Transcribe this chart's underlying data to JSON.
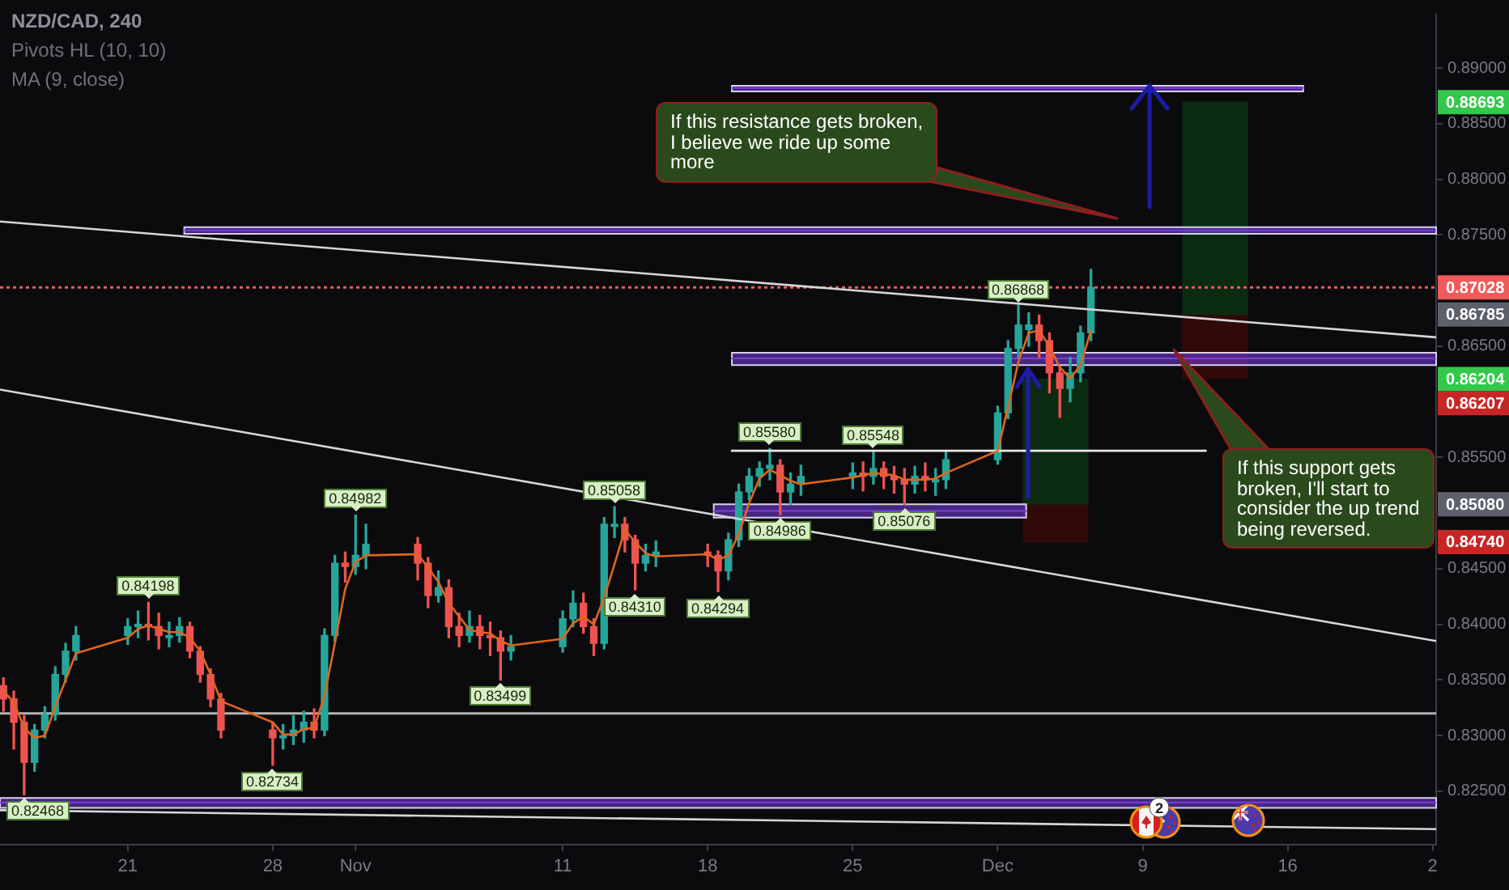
{
  "chart_data": {
    "type": "candlestick",
    "title": "NZD/CAD, 240",
    "subtitle": "Pivots HL (10, 10)",
    "x": [
      "--10-15T00:00",
      "--10-15T12:00",
      "--10-16T00:00",
      "--10-16T12:00",
      "--10-17T00:00",
      "--10-17T12:00",
      "--10-18T00:00",
      "--10-18T12:00",
      "--10-21T00:00",
      "--10-21T12:00",
      "--10-22T00:00",
      "--10-22T12:00",
      "--10-23T00:00",
      "--10-23T12:00",
      "--10-24T00:00",
      "--10-24T12:00",
      "--10-25T00:00",
      "--10-25T12:00",
      "--10-28T00:00",
      "--10-28T12:00",
      "--10-29T00:00",
      "--10-29T12:00",
      "--10-30T00:00",
      "--10-30T12:00",
      "--10-31T00:00",
      "--10-31T12:00",
      "--11-01T00:00",
      "--11-01T12:00",
      "--11-04T00:00",
      "--11-04T12:00",
      "--11-05T00:00",
      "--11-05T12:00",
      "--11-06T00:00",
      "--11-06T12:00",
      "--11-07T00:00",
      "--11-07T12:00",
      "--11-08T00:00",
      "--11-08T12:00",
      "--11-11T00:00",
      "--11-11T12:00",
      "--11-12T00:00",
      "--11-12T12:00",
      "--11-13T00:00",
      "--11-13T12:00",
      "--11-14T00:00",
      "--11-14T12:00",
      "--11-15T00:00",
      "--11-15T12:00",
      "--11-18T00:00",
      "--11-18T12:00",
      "--11-19T00:00",
      "--11-19T12:00",
      "--11-20T00:00",
      "--11-20T12:00",
      "--11-21T00:00",
      "--11-21T12:00",
      "--11-22T00:00",
      "--11-22T12:00",
      "--11-25T00:00",
      "--11-25T12:00",
      "--11-26T00:00",
      "--11-26T12:00",
      "--11-27T00:00",
      "--11-27T12:00",
      "--11-28T00:00",
      "--11-28T12:00",
      "--11-29T00:00",
      "--11-29T12:00",
      "--12-02T00:00",
      "--12-02T12:00",
      "--12-03T00:00",
      "--12-03T12:00",
      "--12-04T00:00",
      "--12-04T12:00",
      "--12-05T00:00",
      "--12-05T12:00",
      "--12-06T00:00",
      "--12-06T12:00"
    ],
    "ohlc": [
      [
        0.8345,
        0.8352,
        0.8322,
        0.8333
      ],
      [
        0.8333,
        0.834,
        0.8288,
        0.8312
      ],
      [
        0.8312,
        0.8318,
        0.82468,
        0.8276
      ],
      [
        0.8276,
        0.831,
        0.8268,
        0.8305
      ],
      [
        0.8305,
        0.8326,
        0.8298,
        0.8319
      ],
      [
        0.8319,
        0.8362,
        0.8314,
        0.8355
      ],
      [
        0.8355,
        0.8383,
        0.8348,
        0.8376
      ],
      [
        0.8376,
        0.8398,
        0.8368,
        0.839
      ],
      [
        0.839,
        0.8405,
        0.8382,
        0.8398
      ],
      [
        0.8398,
        0.8412,
        0.8388,
        0.84
      ],
      [
        0.84,
        0.84198,
        0.8386,
        0.8398
      ],
      [
        0.8398,
        0.841,
        0.8378,
        0.839
      ],
      [
        0.8388,
        0.8402,
        0.838,
        0.839
      ],
      [
        0.839,
        0.8406,
        0.8384,
        0.8398
      ],
      [
        0.8398,
        0.8402,
        0.837,
        0.8376
      ],
      [
        0.8376,
        0.838,
        0.8348,
        0.8355
      ],
      [
        0.8355,
        0.836,
        0.8326,
        0.8333
      ],
      [
        0.8333,
        0.8338,
        0.8298,
        0.8305
      ],
      [
        0.8305,
        0.8312,
        0.82734,
        0.8298
      ],
      [
        0.8298,
        0.831,
        0.8288,
        0.83
      ],
      [
        0.83,
        0.8318,
        0.8292,
        0.8305
      ],
      [
        0.8305,
        0.8322,
        0.8294,
        0.8312
      ],
      [
        0.8312,
        0.8324,
        0.8298,
        0.8305
      ],
      [
        0.8305,
        0.8396,
        0.83,
        0.839
      ],
      [
        0.839,
        0.8462,
        0.8385,
        0.8455
      ],
      [
        0.8455,
        0.8465,
        0.8438,
        0.8452
      ],
      [
        0.8452,
        0.84982,
        0.8445,
        0.8462
      ],
      [
        0.8462,
        0.849,
        0.845,
        0.8472
      ],
      [
        0.8472,
        0.8478,
        0.844,
        0.8455
      ],
      [
        0.8455,
        0.846,
        0.8415,
        0.8426
      ],
      [
        0.8426,
        0.8448,
        0.842,
        0.8433
      ],
      [
        0.8433,
        0.844,
        0.8388,
        0.8398
      ],
      [
        0.8398,
        0.841,
        0.838,
        0.839
      ],
      [
        0.839,
        0.8412,
        0.8384,
        0.8398
      ],
      [
        0.8398,
        0.8408,
        0.8378,
        0.839
      ],
      [
        0.839,
        0.8402,
        0.8372,
        0.8388
      ],
      [
        0.8388,
        0.8394,
        0.83499,
        0.8376
      ],
      [
        0.8376,
        0.839,
        0.8368,
        0.838
      ],
      [
        0.838,
        0.8412,
        0.8375,
        0.8405
      ],
      [
        0.8405,
        0.843,
        0.8398,
        0.8419
      ],
      [
        0.8419,
        0.8428,
        0.8392,
        0.8398
      ],
      [
        0.8398,
        0.8405,
        0.8372,
        0.8383
      ],
      [
        0.8383,
        0.8496,
        0.8378,
        0.849
      ],
      [
        0.8488,
        0.85058,
        0.8478,
        0.849
      ],
      [
        0.849,
        0.8496,
        0.8465,
        0.8476
      ],
      [
        0.8476,
        0.848,
        0.8431,
        0.8455
      ],
      [
        0.8455,
        0.8472,
        0.8448,
        0.8462
      ],
      [
        0.8462,
        0.8475,
        0.8452,
        0.8465
      ],
      [
        0.8465,
        0.8472,
        0.8452,
        0.8462
      ],
      [
        0.8462,
        0.8466,
        0.84294,
        0.8448
      ],
      [
        0.8448,
        0.8482,
        0.844,
        0.8476
      ],
      [
        0.8476,
        0.8526,
        0.847,
        0.8519
      ],
      [
        0.8519,
        0.854,
        0.8512,
        0.8533
      ],
      [
        0.8533,
        0.8546,
        0.8524,
        0.854
      ],
      [
        0.854,
        0.8558,
        0.853,
        0.8543
      ],
      [
        0.8543,
        0.8548,
        0.84986,
        0.8519
      ],
      [
        0.8519,
        0.8536,
        0.8508,
        0.8526
      ],
      [
        0.8526,
        0.8543,
        0.8516,
        0.8533
      ],
      [
        0.8533,
        0.8545,
        0.8522,
        0.8536
      ],
      [
        0.8536,
        0.8546,
        0.852,
        0.8533
      ],
      [
        0.8533,
        0.85548,
        0.8526,
        0.854
      ],
      [
        0.854,
        0.8546,
        0.8522,
        0.8533
      ],
      [
        0.8533,
        0.8542,
        0.8518,
        0.853
      ],
      [
        0.853,
        0.854,
        0.85076,
        0.8526
      ],
      [
        0.8526,
        0.8542,
        0.8518,
        0.8533
      ],
      [
        0.8533,
        0.8545,
        0.852,
        0.853
      ],
      [
        0.8528,
        0.854,
        0.8516,
        0.853
      ],
      [
        0.853,
        0.8556,
        0.8522,
        0.8548
      ],
      [
        0.8548,
        0.8596,
        0.8544,
        0.859
      ],
      [
        0.859,
        0.8655,
        0.8585,
        0.8648
      ],
      [
        0.8648,
        0.86868,
        0.864,
        0.8669
      ],
      [
        0.8665,
        0.868,
        0.865,
        0.8669
      ],
      [
        0.8669,
        0.8678,
        0.864,
        0.8655
      ],
      [
        0.8655,
        0.8662,
        0.8608,
        0.8626
      ],
      [
        0.8626,
        0.8632,
        0.8586,
        0.8612
      ],
      [
        0.8612,
        0.864,
        0.86,
        0.8626
      ],
      [
        0.8626,
        0.8668,
        0.8618,
        0.8662
      ],
      [
        0.8662,
        0.8719,
        0.8655,
        0.87028
      ]
    ],
    "colors": [
      "#ef5350",
      "#ef5350",
      "#ef5350",
      "#26a69a",
      "#26a69a",
      "#26a69a",
      "#26a69a",
      "#26a69a",
      "#26a69a",
      "#26a69a",
      "#ef5350",
      "#ef5350",
      "#26a69a",
      "#26a69a",
      "#ef5350",
      "#ef5350",
      "#ef5350",
      "#ef5350",
      "#ef5350",
      "#26a69a",
      "#26a69a",
      "#26a69a",
      "#ef5350",
      "#26a69a",
      "#26a69a",
      "#ef5350",
      "#26a69a",
      "#26a69a",
      "#ef5350",
      "#ef5350",
      "#26a69a",
      "#ef5350",
      "#ef5350",
      "#26a69a",
      "#ef5350",
      "#ef5350",
      "#ef5350",
      "#26a69a",
      "#26a69a",
      "#26a69a",
      "#ef5350",
      "#ef5350",
      "#26a69a",
      "#26a69a",
      "#ef5350",
      "#ef5350",
      "#26a69a",
      "#26a69a",
      "#ef5350",
      "#ef5350",
      "#26a69a",
      "#26a69a",
      "#26a69a",
      "#26a69a",
      "#26a69a",
      "#ef5350",
      "#26a69a",
      "#26a69a",
      "#26a69a",
      "#ef5350",
      "#26a69a",
      "#ef5350",
      "#ef5350",
      "#ef5350",
      "#26a69a",
      "#ef5350",
      "#26a69a",
      "#26a69a",
      "#26a69a",
      "#26a69a",
      "#26a69a",
      "#26a69a",
      "#ef5350",
      "#ef5350",
      "#ef5350",
      "#26a69a",
      "#26a69a",
      "#26a69a"
    ],
    "xlim": [
      "--10-14T20:00",
      "--12-23T04:00"
    ],
    "xticks": [
      {
        "value": "--10-21",
        "label": "21"
      },
      {
        "value": "--10-28",
        "label": "28"
      },
      {
        "value": "--11-01",
        "label": "Nov"
      },
      {
        "value": "--11-11",
        "label": "11"
      },
      {
        "value": "--11-18",
        "label": "18"
      },
      {
        "value": "--11-25",
        "label": "25"
      },
      {
        "value": "--12-02",
        "label": "Dec"
      },
      {
        "value": "--12-09",
        "label": "9"
      },
      {
        "value": "--12-16",
        "label": "16"
      },
      {
        "value": "--12-23",
        "label": "2"
      }
    ],
    "ylim": [
      0.8202,
      0.8948
    ],
    "yticks": [
      {
        "value": 0.825,
        "label": "0.82500"
      },
      {
        "value": 0.83,
        "label": "0.83000"
      },
      {
        "value": 0.835,
        "label": "0.83500"
      },
      {
        "value": 0.84,
        "label": "0.84000"
      },
      {
        "value": 0.845,
        "label": "0.84500"
      },
      {
        "value": 0.855,
        "label": "0.85500"
      },
      {
        "value": 0.865,
        "label": "0.86500"
      },
      {
        "value": 0.875,
        "label": "0.87500"
      },
      {
        "value": 0.88,
        "label": "0.88000"
      },
      {
        "value": 0.885,
        "label": "0.88500"
      },
      {
        "value": 0.89,
        "label": "0.89000"
      }
    ],
    "marker": "none",
    "series": [
      {
        "type": "line",
        "color": "#e0651c",
        "values": [
          0.834,
          0.833,
          0.8307,
          0.8298,
          0.83,
          0.8326,
          0.835,
          0.8374,
          0.8388,
          0.8396,
          0.8399,
          0.8396,
          0.8393,
          0.8393,
          0.8388,
          0.8376,
          0.8355,
          0.8331,
          0.8312,
          0.8301,
          0.8301,
          0.8306,
          0.8307,
          0.8336,
          0.8383,
          0.8432,
          0.8456,
          0.8462,
          0.8463,
          0.8451,
          0.8438,
          0.8419,
          0.8407,
          0.8395,
          0.8393,
          0.8392,
          0.8385,
          0.8381,
          0.8387,
          0.8401,
          0.8407,
          0.84,
          0.8424,
          0.8454,
          0.8485,
          0.8474,
          0.8464,
          0.8461,
          0.8463,
          0.8458,
          0.8462,
          0.8481,
          0.8509,
          0.8531,
          0.8539,
          0.8534,
          0.8529,
          0.8526,
          0.8532,
          0.8534,
          0.8536,
          0.8535,
          0.8534,
          0.853,
          0.853,
          0.853,
          0.8531,
          0.8536,
          0.8556,
          0.8595,
          0.8636,
          0.8662,
          0.8664,
          0.865,
          0.8631,
          0.8621,
          0.8633,
          0.8664
        ]
      },
      {
        "type": "line",
        "color": "#d6d6d6",
        "x": [
          "--10-14T20:00",
          "--12-23T04:00"
        ],
        "values": [
          0.8762,
          0.8658
        ]
      },
      {
        "type": "line",
        "color": "#d6d6d6",
        "x": [
          "--10-14T20:00",
          "--12-23T04:00"
        ],
        "values": [
          0.8611,
          0.8385
        ]
      },
      {
        "type": "line",
        "color": "#d6d6d6",
        "x": [
          "--10-14T20:00",
          "--12-23T04:00"
        ],
        "values": [
          0.8233,
          0.8216
        ]
      },
      {
        "type": "line",
        "color": "#e6e6e6",
        "x": [
          "--11-19T04:00",
          "--12-12T01:00"
        ],
        "values": [
          0.8556,
          0.8556
        ]
      },
      {
        "type": "line",
        "color": "#7a3ee0",
        "x": [
          "--11-19T04:00",
          "--12-16T18:00"
        ],
        "values": [
          0.8882,
          0.8882
        ],
        "lower": [
          0.8879,
          0.8879
        ],
        "upper": [
          0.8884,
          0.8884
        ]
      },
      {
        "type": "line",
        "color": "#7a3ee0",
        "x": [
          "--10-23T17:30",
          "--12-23T04:00"
        ],
        "values": [
          0.8754,
          0.8754
        ],
        "lower": [
          0.8751,
          0.8751
        ],
        "upper": [
          0.8757,
          0.8757
        ]
      },
      {
        "type": "line",
        "color": "#7a3ee0",
        "x": [
          "--11-19T04:00",
          "--12-23T04:00"
        ],
        "values": [
          0.8639,
          0.8639
        ],
        "lower": [
          0.8633,
          0.8633
        ],
        "upper": [
          0.8644,
          0.8644
        ]
      },
      {
        "type": "line",
        "color": "#7a3ee0",
        "x": [
          "--11-18T07:00",
          "--12-03T09:00"
        ],
        "values": [
          0.8502,
          0.8502
        ],
        "lower": [
          0.8496,
          0.8496
        ],
        "upper": [
          0.8508,
          0.8508
        ]
      },
      {
        "type": "line",
        "color": "#7a3ee0",
        "x": [
          "--10-14T20:00",
          "--12-23T04:00"
        ],
        "values": [
          0.824,
          0.824
        ],
        "lower": [
          0.8235,
          0.8235
        ],
        "upper": [
          0.8244,
          0.8244
        ]
      },
      {
        "type": "bar",
        "color": "#0b2b10",
        "x": [
          "--12-04T19:00",
          "--12-12T12:00"
        ],
        "base": [
          0.8508,
          0.86785
        ],
        "values": [
          0.01124,
          0.01908
        ]
      },
      {
        "type": "bar",
        "color": "#300909",
        "x": [
          "--12-04T19:00",
          "--12-12T12:00"
        ],
        "base": [
          0.8474,
          0.86207
        ],
        "values": [
          0.0034,
          0.00578
        ]
      }
    ],
    "ref_lines": [
      {
        "axis": "y",
        "value": 0.832,
        "color": "#b4b4b4"
      },
      {
        "axis": "y",
        "value": 0.87028,
        "label": "0.87028",
        "color": "#f05a5a",
        "line_style": "dotted"
      }
    ],
    "annotations": [
      "MA (9, close)",
      "If this resistance gets broken,\nI believe we ride up some\nmore",
      "If this support gets\nbroken, I'll start to\nconsider the up trend\nbeing reversed.",
      "2",
      {
        "text": "0.82468",
        "x": "--10-16T00:00",
        "y": 0.82468
      },
      {
        "text": "0.84198",
        "x": "--10-22T00:00",
        "y": 0.84198
      },
      {
        "text": "0.82734",
        "x": "--10-28T00:00",
        "y": 0.82734
      },
      {
        "text": "0.84982",
        "x": "--11-01T00:00",
        "y": 0.84982
      },
      {
        "text": "0.83499",
        "x": "--11-08T00:00",
        "y": 0.83499
      },
      {
        "text": "0.85058",
        "x": "--11-13T12:00",
        "y": 0.85058
      },
      {
        "text": "0.84310",
        "x": "--11-14T12:00",
        "y": 0.8431
      },
      {
        "text": "0.84294",
        "x": "--11-18T12:00",
        "y": 0.84294
      },
      {
        "text": "0.85580",
        "x": "--11-21T00:00",
        "y": 0.8558
      },
      {
        "text": "0.84986",
        "x": "--11-21T12:00",
        "y": 0.84986
      },
      {
        "text": "0.85548",
        "x": "--11-26T00:00",
        "y": 0.85548
      },
      {
        "text": "0.85076",
        "x": "--11-27T12:00",
        "y": 0.85076
      },
      {
        "text": "0.86868",
        "x": "--12-03T00:00",
        "y": 0.86868
      },
      {
        "text": "0.88693",
        "y": 0.88693
      },
      {
        "text": "0.86785",
        "y": 0.86785
      },
      {
        "text": "0.85080",
        "y": 0.8508
      },
      {
        "text": "0.84740",
        "y": 0.8474
      },
      "0.86204",
      "0.86207"
    ]
  }
}
